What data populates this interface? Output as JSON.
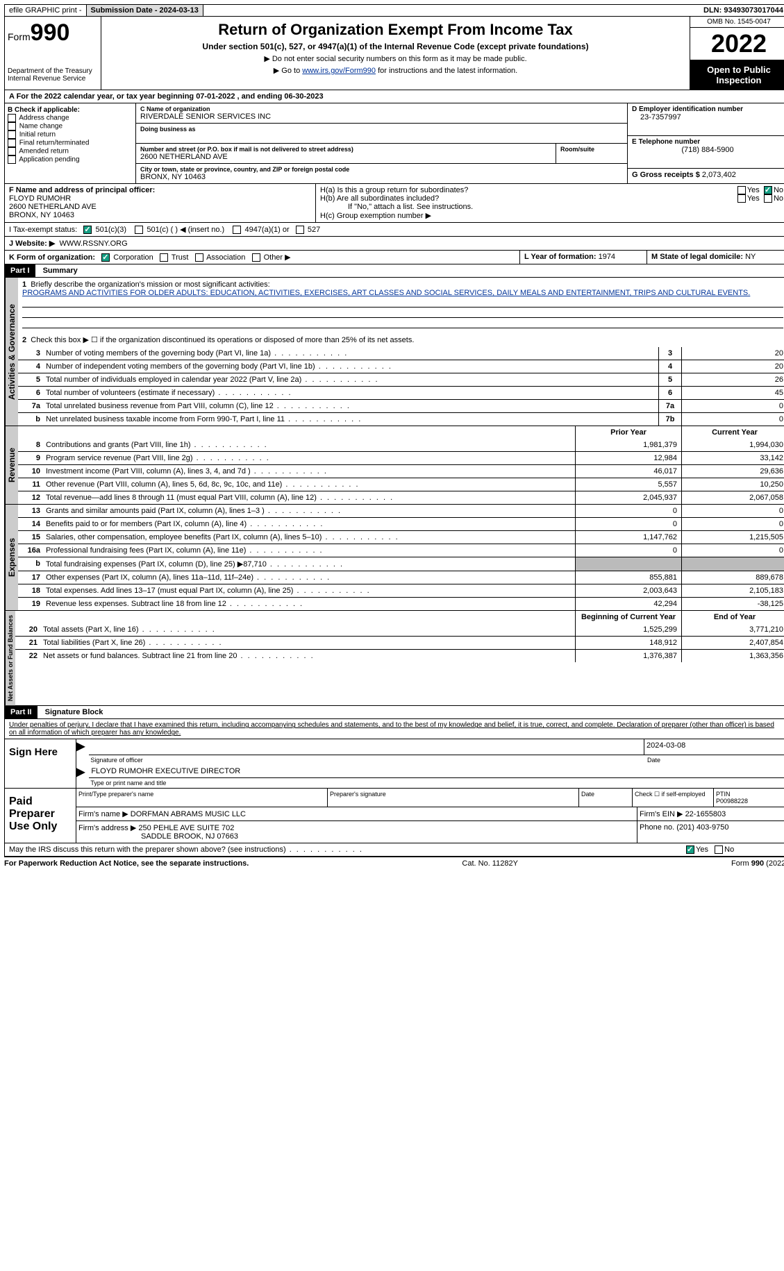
{
  "topbar": {
    "efile": "efile GRAPHIC print -",
    "submission": "Submission Date - 2024-03-13",
    "dln": "DLN: 93493073017044"
  },
  "header": {
    "form_prefix": "Form",
    "form_num": "990",
    "dept": "Department of the Treasury\nInternal Revenue Service",
    "title": "Return of Organization Exempt From Income Tax",
    "sub": "Under section 501(c), 527, or 4947(a)(1) of the Internal Revenue Code (except private foundations)",
    "note1": "▶ Do not enter social security numbers on this form as it may be made public.",
    "note2_pre": "▶ Go to ",
    "note2_link": "www.irs.gov/Form990",
    "note2_post": " for instructions and the latest information.",
    "omb": "OMB No. 1545-0047",
    "year": "2022",
    "open": "Open to Public Inspection"
  },
  "line_a": "A For the 2022 calendar year, or tax year beginning 07-01-2022   , and ending 06-30-2023",
  "block_b": {
    "b_label": "B Check if applicable:",
    "opts": [
      "Address change",
      "Name change",
      "Initial return",
      "Final return/terminated",
      "Amended return",
      "Application pending"
    ],
    "c_label": "C Name of organization",
    "org": "RIVERDALE SENIOR SERVICES INC",
    "dba_label": "Doing business as",
    "addr_label": "Number and street (or P.O. box if mail is not delivered to street address)",
    "room_label": "Room/suite",
    "addr": "2600 NETHERLAND AVE",
    "city_label": "City or town, state or province, country, and ZIP or foreign postal code",
    "city": "BRONX, NY  10463",
    "d_label": "D Employer identification number",
    "ein": "23-7357997",
    "e_label": "E Telephone number",
    "phone": "(718) 884-5900",
    "g_label": "G Gross receipts $",
    "g_val": "2,073,402"
  },
  "block_f": {
    "f_label": "F Name and address of principal officer:",
    "name": "FLOYD RUMOHR",
    "addr": "2600 NETHERLAND AVE",
    "city": "BRONX, NY  10463",
    "h_a": "H(a)  Is this a group return for subordinates?",
    "h_b": "H(b)  Are all subordinates included?",
    "h_note": "If \"No,\" attach a list. See instructions.",
    "h_c": "H(c)  Group exemption number ▶",
    "yes": "Yes",
    "no": "No"
  },
  "block_i": {
    "label": "I    Tax-exempt status:",
    "opts": [
      "501(c)(3)",
      "501(c) (  ) ◀ (insert no.)",
      "4947(a)(1) or",
      "527"
    ]
  },
  "block_j": {
    "label": "J   Website: ▶",
    "val": "WWW.RSSNY.ORG"
  },
  "block_k": {
    "label": "K Form of organization:",
    "opts": [
      "Corporation",
      "Trust",
      "Association",
      "Other ▶"
    ],
    "l_label": "L Year of formation:",
    "l_val": "1974",
    "m_label": "M State of legal domicile:",
    "m_val": "NY"
  },
  "part1": {
    "hdr": "Part I",
    "title": "Summary"
  },
  "summary": {
    "tab1": "Activities & Governance",
    "l1_label": "Briefly describe the organization's mission or most significant activities:",
    "l1_text": "PROGRAMS AND ACTIVITIES FOR OLDER ADULTS: EDUCATION, ACTIVITIES, EXERCISES, ART CLASSES AND SOCIAL SERVICES, DAILY MEALS AND ENTERTAINMENT, TRIPS AND CULTURAL EVENTS.",
    "l2": "Check this box ▶ ☐ if the organization discontinued its operations or disposed of more than 25% of its net assets.",
    "rows_gov": [
      {
        "n": "3",
        "t": "Number of voting members of the governing body (Part VI, line 1a)",
        "box": "3",
        "v": "20"
      },
      {
        "n": "4",
        "t": "Number of independent voting members of the governing body (Part VI, line 1b)",
        "box": "4",
        "v": "20"
      },
      {
        "n": "5",
        "t": "Total number of individuals employed in calendar year 2022 (Part V, line 2a)",
        "box": "5",
        "v": "26"
      },
      {
        "n": "6",
        "t": "Total number of volunteers (estimate if necessary)",
        "box": "6",
        "v": "45"
      },
      {
        "n": "7a",
        "t": "Total unrelated business revenue from Part VIII, column (C), line 12",
        "box": "7a",
        "v": "0"
      },
      {
        "n": "b",
        "t": "Net unrelated business taxable income from Form 990-T, Part I, line 11",
        "box": "7b",
        "v": "0"
      }
    ],
    "prior_hdr": "Prior Year",
    "curr_hdr": "Current Year",
    "tab2": "Revenue",
    "rows_rev": [
      {
        "n": "8",
        "t": "Contributions and grants (Part VIII, line 1h)",
        "p": "1,981,379",
        "c": "1,994,030"
      },
      {
        "n": "9",
        "t": "Program service revenue (Part VIII, line 2g)",
        "p": "12,984",
        "c": "33,142"
      },
      {
        "n": "10",
        "t": "Investment income (Part VIII, column (A), lines 3, 4, and 7d )",
        "p": "46,017",
        "c": "29,636"
      },
      {
        "n": "11",
        "t": "Other revenue (Part VIII, column (A), lines 5, 6d, 8c, 9c, 10c, and 11e)",
        "p": "5,557",
        "c": "10,250"
      },
      {
        "n": "12",
        "t": "Total revenue—add lines 8 through 11 (must equal Part VIII, column (A), line 12)",
        "p": "2,045,937",
        "c": "2,067,058"
      }
    ],
    "tab3": "Expenses",
    "rows_exp": [
      {
        "n": "13",
        "t": "Grants and similar amounts paid (Part IX, column (A), lines 1–3 )",
        "p": "0",
        "c": "0"
      },
      {
        "n": "14",
        "t": "Benefits paid to or for members (Part IX, column (A), line 4)",
        "p": "0",
        "c": "0"
      },
      {
        "n": "15",
        "t": "Salaries, other compensation, employee benefits (Part IX, column (A), lines 5–10)",
        "p": "1,147,762",
        "c": "1,215,505"
      },
      {
        "n": "16a",
        "t": "Professional fundraising fees (Part IX, column (A), line 11e)",
        "p": "0",
        "c": "0"
      },
      {
        "n": "b",
        "t": "Total fundraising expenses (Part IX, column (D), line 25) ▶87,710",
        "p": "grey",
        "c": "grey"
      },
      {
        "n": "17",
        "t": "Other expenses (Part IX, column (A), lines 11a–11d, 11f–24e)",
        "p": "855,881",
        "c": "889,678"
      },
      {
        "n": "18",
        "t": "Total expenses. Add lines 13–17 (must equal Part IX, column (A), line 25)",
        "p": "2,003,643",
        "c": "2,105,183"
      },
      {
        "n": "19",
        "t": "Revenue less expenses. Subtract line 18 from line 12",
        "p": "42,294",
        "c": "-38,125"
      }
    ],
    "tab4": "Net Assets or Fund Balances",
    "beg_hdr": "Beginning of Current Year",
    "end_hdr": "End of Year",
    "rows_net": [
      {
        "n": "20",
        "t": "Total assets (Part X, line 16)",
        "p": "1,525,299",
        "c": "3,771,210"
      },
      {
        "n": "21",
        "t": "Total liabilities (Part X, line 26)",
        "p": "148,912",
        "c": "2,407,854"
      },
      {
        "n": "22",
        "t": "Net assets or fund balances. Subtract line 21 from line 20",
        "p": "1,376,387",
        "c": "1,363,356"
      }
    ]
  },
  "part2": {
    "hdr": "Part II",
    "title": "Signature Block"
  },
  "penalty": "Under penalties of perjury, I declare that I have examined this return, including accompanying schedules and statements, and to the best of my knowledge and belief, it is true, correct, and complete. Declaration of preparer (other than officer) is based on all information of which preparer has any knowledge.",
  "sign": {
    "left": "Sign Here",
    "sig_label": "Signature of officer",
    "date": "2024-03-08",
    "date_label": "Date",
    "name": "FLOYD RUMOHR  EXECUTIVE DIRECTOR",
    "name_label": "Type or print name and title"
  },
  "prep": {
    "left": "Paid Preparer Use Only",
    "pt_label": "Print/Type preparer's name",
    "sig_label": "Preparer's signature",
    "date_label": "Date",
    "check_label": "Check ☐ if self-employed",
    "ptin_label": "PTIN",
    "ptin": "P00988228",
    "firm_label": "Firm's name    ▶",
    "firm": "DORFMAN ABRAMS MUSIC LLC",
    "ein_label": "Firm's EIN ▶",
    "ein": "22-1655803",
    "addr_label": "Firm's address ▶",
    "addr1": "250 PEHLE AVE SUITE 702",
    "addr2": "SADDLE BROOK, NJ  07663",
    "phone_label": "Phone no.",
    "phone": "(201) 403-9750"
  },
  "may_irs": "May the IRS discuss this return with the preparer shown above? (see instructions)",
  "footer": {
    "left": "For Paperwork Reduction Act Notice, see the separate instructions.",
    "mid": "Cat. No. 11282Y",
    "right": "Form 990 (2022)"
  }
}
